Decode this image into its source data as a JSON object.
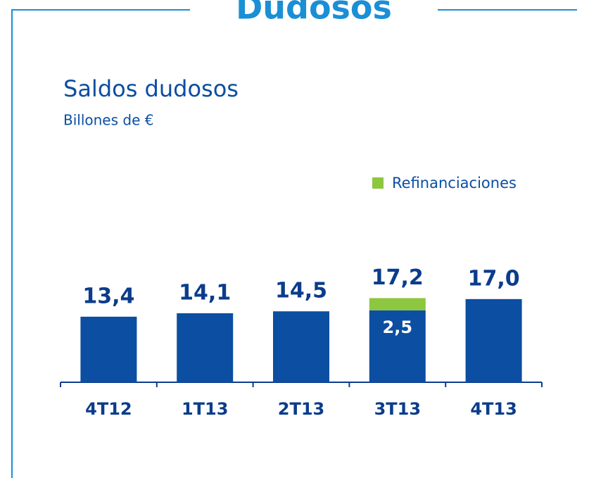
{
  "header": {
    "title": "Dudosos"
  },
  "chart_data": {
    "type": "bar",
    "stacked": true,
    "title": "Saldos dudosos",
    "subtitle": "Billones de €",
    "categories": [
      "4T12",
      "1T13",
      "2T13",
      "3T13",
      "4T13"
    ],
    "series": [
      {
        "color": "#0b4ea2",
        "values": [
          13.4,
          14.1,
          14.5,
          14.7,
          17.0
        ]
      },
      {
        "name": "Refinanciaciones",
        "color": "#8dc63f",
        "values": [
          null,
          null,
          null,
          2.5,
          null
        ],
        "value_labels": [
          null,
          null,
          null,
          "2,5",
          null
        ]
      }
    ],
    "totals": [
      13.4,
      14.1,
      14.5,
      17.2,
      17.0
    ],
    "total_labels": [
      "13,4",
      "14,1",
      "14,5",
      "17,2",
      "17,0"
    ],
    "ylim": [
      0,
      20
    ],
    "legend": "upper right"
  }
}
